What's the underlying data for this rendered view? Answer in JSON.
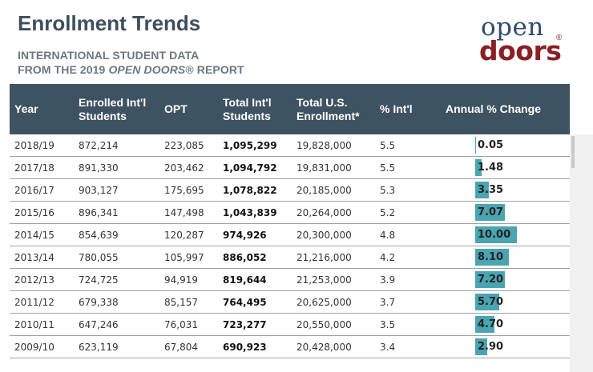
{
  "header": {
    "title": "Enrollment Trends",
    "subtitle_line1": "INTERNATIONAL STUDENT DATA",
    "subtitle_line2_pre": "FROM THE 2019 ",
    "subtitle_line2_italic": "OPEN DOORS",
    "subtitle_line2_post": "® REPORT"
  },
  "logo": {
    "top": "open",
    "bottom": "doors",
    "mark": "®"
  },
  "table": {
    "columns": [
      "Year",
      "Enrolled Int'l Students",
      "OPT",
      "Total Int'l Students",
      "Total U.S. Enrollment*",
      "% Int'l",
      "Annual % Change"
    ],
    "column_lines": [
      [
        "Year"
      ],
      [
        "Enrolled Int'l",
        "Students"
      ],
      [
        "OPT"
      ],
      [
        "Total Int'l",
        "Students"
      ],
      [
        "Total U.S.",
        "Enrollment*"
      ],
      [
        "% Int'l"
      ],
      [
        "Annual % Change"
      ]
    ],
    "rows": [
      {
        "year": "2018/19",
        "enrolled": "872,214",
        "opt": "223,085",
        "total": "1,095,299",
        "us": "19,828,000",
        "pct": "5.5",
        "change": "0.05"
      },
      {
        "year": "2017/18",
        "enrolled": "891,330",
        "opt": "203,462",
        "total": "1,094,792",
        "us": "19,831,000",
        "pct": "5.5",
        "change": "1.48"
      },
      {
        "year": "2016/17",
        "enrolled": "903,127",
        "opt": "175,695",
        "total": "1,078,822",
        "us": "20,185,000",
        "pct": "5.3",
        "change": "3.35"
      },
      {
        "year": "2015/16",
        "enrolled": "896,341",
        "opt": "147,498",
        "total": "1,043,839",
        "us": "20,264,000",
        "pct": "5.2",
        "change": "7.07"
      },
      {
        "year": "2014/15",
        "enrolled": "854,639",
        "opt": "120,287",
        "total": "974,926",
        "us": "20,300,000",
        "pct": "4.8",
        "change": "10.00"
      },
      {
        "year": "2013/14",
        "enrolled": "780,055",
        "opt": "105,997",
        "total": "886,052",
        "us": "21,216,000",
        "pct": "4.2",
        "change": "8.10"
      },
      {
        "year": "2012/13",
        "enrolled": "724,725",
        "opt": "94,919",
        "total": "819,644",
        "us": "21,253,000",
        "pct": "3.9",
        "change": "7.20"
      },
      {
        "year": "2011/12",
        "enrolled": "679,338",
        "opt": "85,157",
        "total": "764,495",
        "us": "20,625,000",
        "pct": "3.7",
        "change": "5.70"
      },
      {
        "year": "2010/11",
        "enrolled": "647,246",
        "opt": "76,031",
        "total": "723,277",
        "us": "20,550,000",
        "pct": "3.5",
        "change": "4.70"
      },
      {
        "year": "2009/10",
        "enrolled": "623,119",
        "opt": "67,804",
        "total": "690,923",
        "us": "20,428,000",
        "pct": "3.4",
        "change": "2.90"
      }
    ],
    "bar_color": "#4aa4b2",
    "header_color": "#3d5361"
  },
  "colors": {
    "title": "#3d4f5c",
    "subtitle": "#6b7780",
    "logo_open": "#2f4b6b",
    "logo_doors": "#8a1f24"
  }
}
